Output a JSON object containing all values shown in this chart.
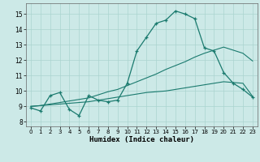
{
  "xlabel": "Humidex (Indice chaleur)",
  "xlim": [
    -0.5,
    23.5
  ],
  "ylim": [
    7.7,
    15.7
  ],
  "xticks": [
    0,
    1,
    2,
    3,
    4,
    5,
    6,
    7,
    8,
    9,
    10,
    11,
    12,
    13,
    14,
    15,
    16,
    17,
    18,
    19,
    20,
    21,
    22,
    23
  ],
  "yticks": [
    8,
    9,
    10,
    11,
    12,
    13,
    14,
    15
  ],
  "background_color": "#cce9e7",
  "grid_color": "#aad4d0",
  "line_color": "#1a7a6e",
  "line1_x": [
    0,
    1,
    2,
    3,
    4,
    5,
    6,
    7,
    8,
    9,
    10,
    11,
    12,
    13,
    14,
    15,
    16,
    17,
    18,
    19,
    20,
    21,
    22,
    23
  ],
  "line1_y": [
    8.9,
    8.7,
    9.7,
    9.9,
    8.8,
    8.4,
    9.7,
    9.4,
    9.3,
    9.4,
    10.5,
    12.6,
    13.5,
    14.4,
    14.6,
    15.2,
    15.0,
    14.7,
    12.8,
    12.6,
    11.2,
    10.5,
    10.1,
    9.6
  ],
  "line2_x": [
    0,
    1,
    2,
    3,
    4,
    5,
    6,
    7,
    8,
    9,
    10,
    11,
    12,
    13,
    14,
    15,
    16,
    17,
    18,
    19,
    20,
    21,
    22,
    23
  ],
  "line2_y": [
    9.0,
    9.05,
    9.15,
    9.25,
    9.35,
    9.45,
    9.55,
    9.75,
    9.95,
    10.1,
    10.35,
    10.6,
    10.85,
    11.1,
    11.4,
    11.65,
    11.9,
    12.2,
    12.45,
    12.65,
    12.85,
    12.65,
    12.45,
    11.95
  ],
  "line3_x": [
    0,
    1,
    2,
    3,
    4,
    5,
    6,
    7,
    8,
    9,
    10,
    11,
    12,
    13,
    14,
    15,
    16,
    17,
    18,
    19,
    20,
    21,
    22,
    23
  ],
  "line3_y": [
    9.0,
    9.05,
    9.1,
    9.15,
    9.2,
    9.25,
    9.3,
    9.4,
    9.5,
    9.6,
    9.7,
    9.8,
    9.9,
    9.95,
    10.0,
    10.1,
    10.2,
    10.3,
    10.4,
    10.5,
    10.6,
    10.55,
    10.5,
    9.65
  ]
}
